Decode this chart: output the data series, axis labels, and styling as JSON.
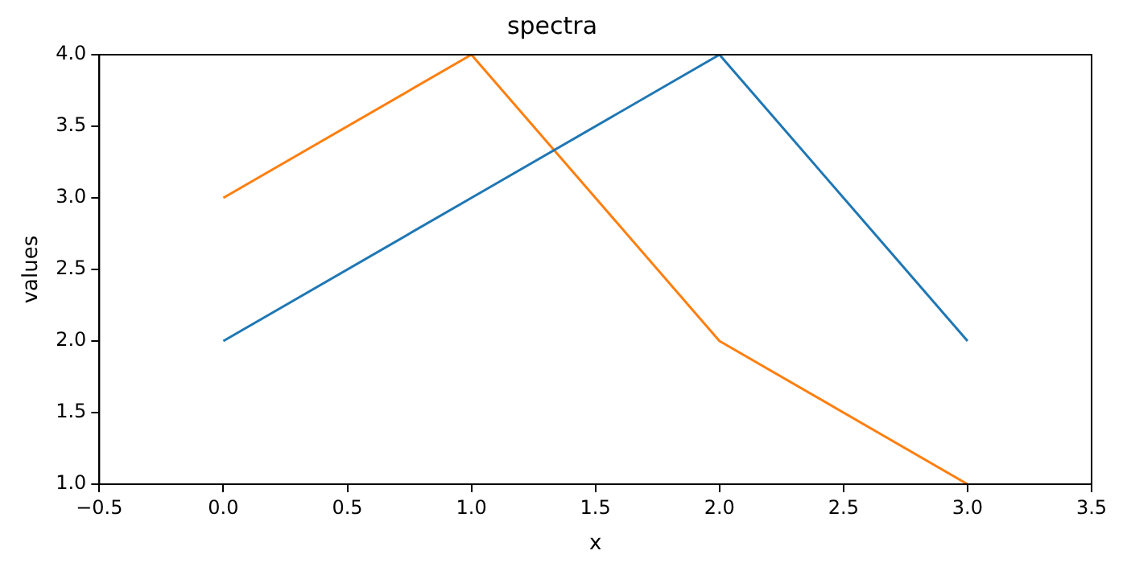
{
  "chart_data": {
    "type": "line",
    "title": "spectra",
    "xlabel": "x",
    "ylabel": "values",
    "x": [
      0,
      1,
      2,
      3
    ],
    "series": [
      {
        "color": "#1f77b4",
        "values": [
          2,
          3,
          4,
          2
        ]
      },
      {
        "color": "#ff7f0e",
        "values": [
          3,
          4,
          2,
          1
        ]
      }
    ],
    "xlim": [
      -0.5,
      3.5
    ],
    "xticks": [
      {
        "value": -0.5,
        "label": "−0.5"
      },
      {
        "value": 0,
        "label": "0.0"
      },
      {
        "value": 0.5,
        "label": "0.5"
      },
      {
        "value": 1,
        "label": "1.0"
      },
      {
        "value": 1.5,
        "label": "1.5"
      },
      {
        "value": 2,
        "label": "2.0"
      },
      {
        "value": 2.5,
        "label": "2.5"
      },
      {
        "value": 3,
        "label": "3.0"
      },
      {
        "value": 3.5,
        "label": "3.5"
      }
    ],
    "ylim": [
      1,
      4
    ],
    "yticks": [
      {
        "value": 1,
        "label": "1.0"
      },
      {
        "value": 1.5,
        "label": "1.5"
      },
      {
        "value": 2,
        "label": "2.0"
      },
      {
        "value": 2.5,
        "label": "2.5"
      },
      {
        "value": 3,
        "label": "3.0"
      },
      {
        "value": 3.5,
        "label": "3.5"
      },
      {
        "value": 4,
        "label": "4.0"
      }
    ],
    "grid": false,
    "legend": false,
    "marker": "none",
    "line_style": "solid"
  }
}
